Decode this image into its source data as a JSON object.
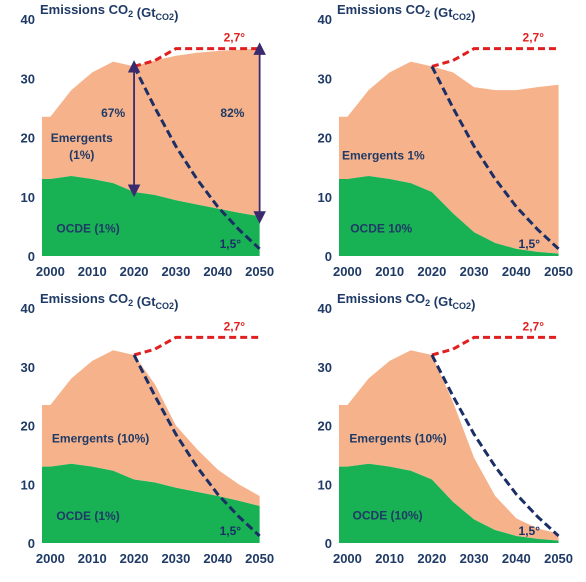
{
  "colors": {
    "ocde": "#18b154",
    "emergents": "#f6b38b",
    "pathway_2_7": "#e02020",
    "pathway_1_5": "#1b2f66",
    "axis_text": "#1f3a66",
    "arrow": "#3a2b6e"
  },
  "chart_data": [
    {
      "type": "area",
      "title": "Emissions CO",
      "title_sub": "2",
      "title_unit_prefix": " (Gt",
      "title_unit_sub": "CO2",
      "title_unit_suffix": ")",
      "x": [
        2000,
        2005,
        2010,
        2015,
        2020,
        2025,
        2030,
        2035,
        2040,
        2045,
        2050
      ],
      "xticks": [
        2000,
        2010,
        2020,
        2030,
        2040,
        2050
      ],
      "yticks": [
        0,
        10,
        20,
        30,
        40
      ],
      "ylim": [
        0,
        40
      ],
      "xlim": [
        1998,
        2052
      ],
      "stacked": true,
      "series": [
        {
          "name": "OCDE (1%)",
          "values": [
            13,
            13.5,
            13,
            12.3,
            10.8,
            10.3,
            9.4,
            8.7,
            8,
            7.3,
            6.7
          ]
        },
        {
          "name": "Emergents (1%)",
          "values": [
            10.5,
            14.5,
            18,
            20.5,
            21.2,
            22.7,
            24.4,
            25.6,
            26.6,
            27.5,
            28.3
          ]
        }
      ],
      "reference_lines": [
        {
          "label": "2,7°",
          "x": [
            2020,
            2025,
            2030,
            2050
          ],
          "y": [
            32,
            33,
            35,
            35
          ],
          "style": "red-dashed"
        },
        {
          "label": "1,5°",
          "x": [
            2020,
            2025,
            2030,
            2035,
            2040,
            2045,
            2050
          ],
          "y": [
            32,
            25,
            18.5,
            13,
            8.3,
            4.5,
            1.2
          ],
          "style": "navy-dashed"
        }
      ],
      "region_labels": [
        {
          "text": "Emergents",
          "x": 2007.5,
          "y": 19.2
        },
        {
          "text": "(1%)",
          "x": 2007.5,
          "y": 16.4
        },
        {
          "text": "OCDE (1%)",
          "x": 2009,
          "y": 4
        }
      ],
      "annotations": [
        {
          "text": "67%",
          "x": 2015,
          "y": 23.5
        },
        {
          "text": "82%",
          "x": 2043.5,
          "y": 23.5
        }
      ],
      "arrows": [
        {
          "x": 2020,
          "y1": 11,
          "y2": 32
        },
        {
          "x": 2050,
          "y1": 6.5,
          "y2": 35
        }
      ]
    },
    {
      "type": "area",
      "title": "Emissions CO",
      "title_sub": "2",
      "title_unit_prefix": " (Gt",
      "title_unit_sub": "CO2",
      "title_unit_suffix": ")",
      "x": [
        2000,
        2005,
        2010,
        2015,
        2020,
        2025,
        2030,
        2035,
        2040,
        2045,
        2050
      ],
      "xticks": [
        2000,
        2010,
        2020,
        2030,
        2040,
        2050
      ],
      "yticks": [
        0,
        10,
        20,
        30,
        40
      ],
      "ylim": [
        0,
        40
      ],
      "xlim": [
        1998,
        2052
      ],
      "stacked": true,
      "series": [
        {
          "name": "OCDE 10%",
          "values": [
            13,
            13.5,
            13,
            12.3,
            10.8,
            7.2,
            4,
            2.2,
            1.2,
            0.7,
            0.4
          ]
        },
        {
          "name": "Emergents 1%",
          "values": [
            10.5,
            14.5,
            18,
            20.5,
            21.2,
            23.8,
            24.5,
            25.8,
            26.8,
            27.8,
            28.5
          ]
        }
      ],
      "reference_lines": [
        {
          "label": "2,7°",
          "x": [
            2020,
            2025,
            2030,
            2050
          ],
          "y": [
            32,
            33,
            35,
            35
          ],
          "style": "red-dashed"
        },
        {
          "label": "1,5°",
          "x": [
            2020,
            2025,
            2030,
            2035,
            2040,
            2045,
            2050
          ],
          "y": [
            32,
            25,
            18.5,
            13,
            8.3,
            4.5,
            1.2
          ],
          "style": "navy-dashed"
        }
      ],
      "region_labels": [
        {
          "text": "Emergents 1%",
          "x": 2008.5,
          "y": 16.3
        },
        {
          "text": "OCDE 10%",
          "x": 2008,
          "y": 4
        }
      ],
      "annotations": [],
      "arrows": []
    },
    {
      "type": "area",
      "title": "Emissions CO",
      "title_sub": "2",
      "title_unit_prefix": " (Gt",
      "title_unit_sub": "CO2",
      "title_unit_suffix": ")",
      "x": [
        2000,
        2005,
        2010,
        2015,
        2020,
        2025,
        2030,
        2035,
        2040,
        2045,
        2050
      ],
      "xticks": [
        2000,
        2010,
        2020,
        2030,
        2040,
        2050
      ],
      "yticks": [
        0,
        10,
        20,
        30,
        40
      ],
      "ylim": [
        0,
        40
      ],
      "xlim": [
        1998,
        2052
      ],
      "stacked": true,
      "series": [
        {
          "name": "OCDE (1%)",
          "values": [
            13,
            13.5,
            13,
            12.3,
            10.8,
            10.3,
            9.4,
            8.7,
            8,
            7.2,
            6.3
          ]
        },
        {
          "name": "Emergents (10%)",
          "values": [
            10.5,
            14.5,
            18,
            20.5,
            21.2,
            16.7,
            10.6,
            7.3,
            4.5,
            2.8,
            1.7
          ]
        }
      ],
      "reference_lines": [
        {
          "label": "2,7°",
          "x": [
            2020,
            2025,
            2030,
            2050
          ],
          "y": [
            32,
            33,
            35,
            35
          ],
          "style": "red-dashed"
        },
        {
          "label": "1,5°",
          "x": [
            2020,
            2025,
            2030,
            2035,
            2040,
            2045,
            2050
          ],
          "y": [
            32,
            25,
            18.5,
            13,
            8.3,
            4.5,
            1.2
          ],
          "style": "navy-dashed"
        }
      ],
      "region_labels": [
        {
          "text": "Emergents (10%)",
          "x": 2012,
          "y": 17.1
        },
        {
          "text": "OCDE (1%)",
          "x": 2009,
          "y": 3.9
        }
      ],
      "annotations": [],
      "arrows": []
    },
    {
      "type": "area",
      "title": "Emissions CO",
      "title_sub": "2",
      "title_unit_prefix": " (Gt",
      "title_unit_sub": "CO2",
      "title_unit_suffix": ")",
      "x": [
        2000,
        2005,
        2010,
        2015,
        2020,
        2025,
        2030,
        2035,
        2040,
        2045,
        2050
      ],
      "xticks": [
        2000,
        2010,
        2020,
        2030,
        2040,
        2050
      ],
      "yticks": [
        0,
        10,
        20,
        30,
        40
      ],
      "ylim": [
        0,
        40
      ],
      "xlim": [
        1998,
        2052
      ],
      "stacked": true,
      "series": [
        {
          "name": "OCDE (10%)",
          "values": [
            13,
            13.5,
            13,
            12.3,
            10.8,
            7,
            4,
            2.2,
            1.2,
            0.7,
            0.4
          ]
        },
        {
          "name": "Emergents (10%)",
          "values": [
            10.5,
            14.5,
            18,
            20.5,
            21.2,
            17,
            10.5,
            5.8,
            3,
            1.8,
            1.2
          ]
        }
      ],
      "reference_lines": [
        {
          "label": "2,7°",
          "x": [
            2020,
            2025,
            2030,
            2050
          ],
          "y": [
            32,
            33,
            35,
            35
          ],
          "style": "red-dashed"
        },
        {
          "label": "1,5°",
          "x": [
            2020,
            2025,
            2030,
            2035,
            2040,
            2045,
            2050
          ],
          "y": [
            32,
            25,
            18.5,
            13,
            8.3,
            4.5,
            1.2
          ],
          "style": "navy-dashed"
        }
      ],
      "region_labels": [
        {
          "text": "Emergents (10%)",
          "x": 2012,
          "y": 17.1
        },
        {
          "text": "OCDE (10%)",
          "x": 2009.5,
          "y": 4
        }
      ],
      "annotations": [],
      "arrows": []
    }
  ]
}
